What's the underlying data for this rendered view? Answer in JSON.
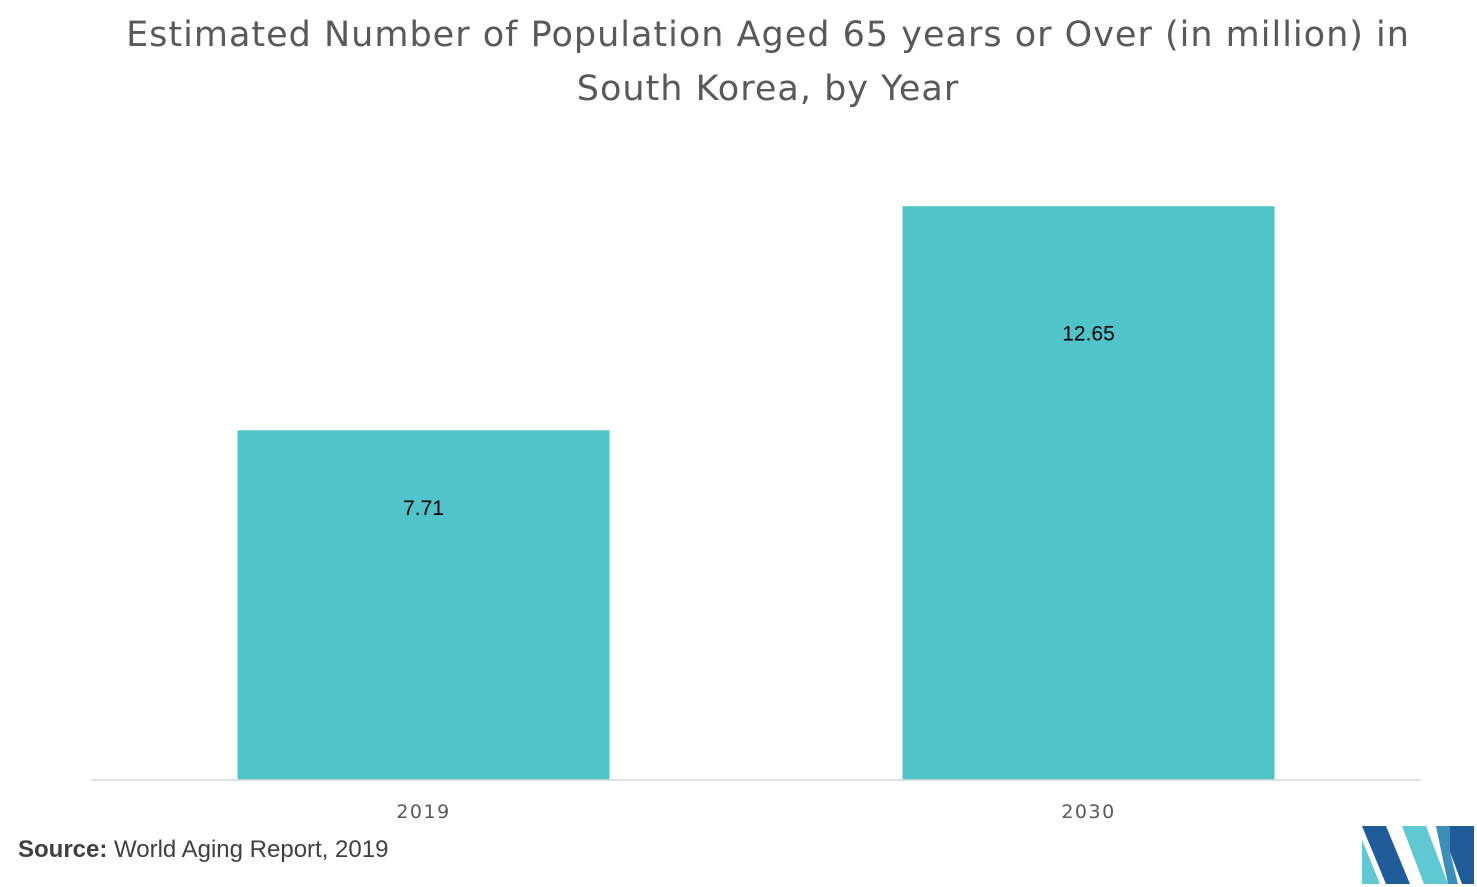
{
  "chart_data": {
    "type": "bar",
    "title": "Estimated Number of Population Aged 65 years or Over (in million) in South Korea, by Year",
    "categories": [
      "2019",
      "2030"
    ],
    "values": [
      7.71,
      12.65
    ],
    "data_labels": [
      "7.71",
      "12.65"
    ],
    "ylim": [
      0,
      14.0
    ],
    "grid": false,
    "legend": "none",
    "bar_color": "#50C4C8",
    "label_color": "#000000",
    "axis_color": "#D9D9D9"
  },
  "source": {
    "label": "Source:",
    "text": "World Aging Report, 2019"
  },
  "logo": {
    "icon": "company-logo-icon",
    "colors": [
      "#1F5C99",
      "#5FC8D3"
    ]
  }
}
